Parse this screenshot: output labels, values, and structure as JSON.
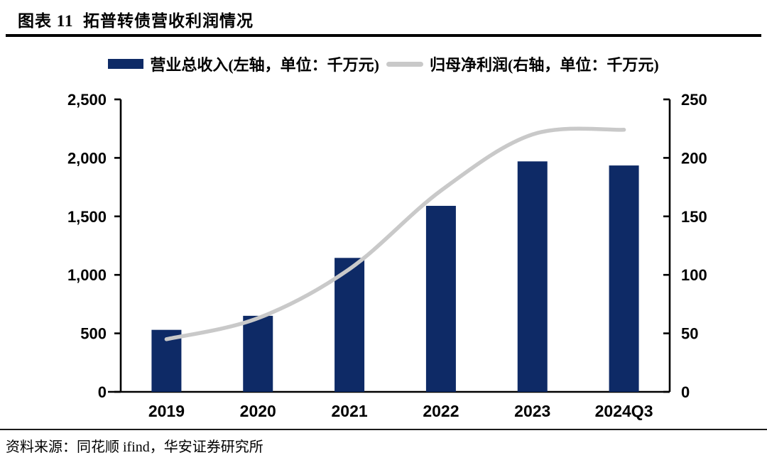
{
  "figure": {
    "title": "图表 11  拓普转债营收利润情况",
    "source": "资料来源：同花顺 ifind，华安证券研究所"
  },
  "colors": {
    "bar": "#0e2a66",
    "line": "#c9c9c9",
    "axis": "#000000"
  },
  "chart_data": {
    "type": "bar",
    "subtype": "bar-and-line-combo",
    "categories": [
      "2019",
      "2020",
      "2021",
      "2022",
      "2023",
      "2024Q3"
    ],
    "series": [
      {
        "name": "营业总收入(左轴，单位：千万元)",
        "short_name": "营业总收入",
        "type": "bar",
        "axis": "left",
        "color": "#0e2a66",
        "values": [
          530,
          650,
          1145,
          1590,
          1970,
          1935
        ]
      },
      {
        "name": "归母净利润(右轴，单位：千万元)",
        "short_name": "归母净利润",
        "type": "line",
        "axis": "right",
        "color": "#c9c9c9",
        "values": [
          45,
          63,
          105,
          172,
          220,
          224
        ]
      }
    ],
    "left_axis": {
      "min": 0,
      "max": 2500,
      "step": 500,
      "tick_values": [
        0,
        500,
        1000,
        1500,
        2000,
        2500
      ],
      "tick_labels": [
        "0",
        "500",
        "1,000",
        "1,500",
        "2,000",
        "2,500"
      ],
      "unit": "千万元"
    },
    "right_axis": {
      "min": 0,
      "max": 250,
      "step": 50,
      "tick_values": [
        0,
        50,
        100,
        150,
        200,
        250
      ],
      "tick_labels": [
        "0",
        "50",
        "100",
        "150",
        "200",
        "250"
      ],
      "unit": "千万元"
    },
    "grid": false,
    "legend_position": "top-center",
    "line_smooth": true
  }
}
